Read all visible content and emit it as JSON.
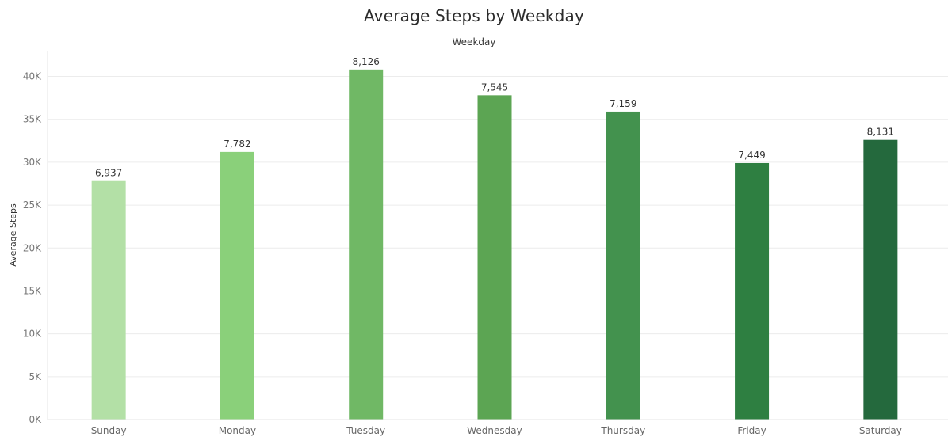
{
  "chart_data": {
    "type": "bar",
    "title": "Average Steps by Weekday",
    "column_header": "Weekday",
    "xlabel": "",
    "ylabel": "Average Steps",
    "categories": [
      "Sunday",
      "Monday",
      "Tuesday",
      "Wednesday",
      "Thursday",
      "Friday",
      "Saturday"
    ],
    "values": [
      27800,
      31200,
      40800,
      37800,
      35900,
      29900,
      32600
    ],
    "data_labels": [
      "6,937",
      "7,782",
      "8,126",
      "7,545",
      "7,159",
      "7,449",
      "8,131"
    ],
    "bar_colors": [
      "#b3e0a6",
      "#8ad07a",
      "#70b865",
      "#5ca553",
      "#43924e",
      "#2e7f41",
      "#24693d"
    ],
    "ylim": [
      0,
      43000
    ],
    "yticks": [
      0,
      5000,
      10000,
      15000,
      20000,
      25000,
      30000,
      35000,
      40000
    ],
    "ytick_labels": [
      "0K",
      "5K",
      "10K",
      "15K",
      "20K",
      "25K",
      "30K",
      "35K",
      "40K"
    ],
    "grid": true,
    "legend": "none"
  }
}
